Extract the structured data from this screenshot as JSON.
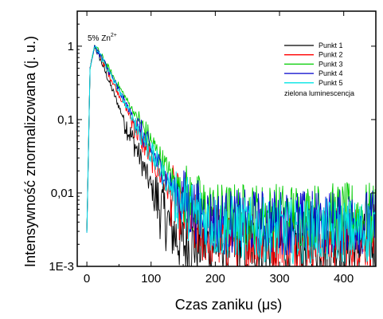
{
  "chart_data": {
    "type": "line",
    "xlabel": "Czas zaniku (μs)",
    "ylabel": "Intensywność znormalizowana (j. u.)",
    "xlim": [
      -15,
      450
    ],
    "ylim": [
      0.001,
      3
    ],
    "y_scale": "log",
    "x_ticks": [
      0,
      100,
      200,
      300,
      400
    ],
    "x_tick_labels": [
      "0",
      "100",
      "200",
      "300",
      "400"
    ],
    "y_ticks": [
      0.001,
      0.01,
      0.1,
      1
    ],
    "y_tick_labels": [
      "1E-3",
      "0,01",
      "0,1",
      "1"
    ],
    "grid": false,
    "legend_position": "top-right",
    "annotation": {
      "base": "5% Zn",
      "sup": "2+"
    },
    "legend_note": "zielona luminescencja",
    "series": [
      {
        "name": "Punkt 1",
        "color": "#000000",
        "x": [
          0,
          5,
          12,
          20,
          40,
          60,
          80,
          100,
          120,
          140,
          150,
          200,
          300,
          450
        ],
        "y": [
          0.003,
          0.5,
          1,
          0.7,
          0.25,
          0.09,
          0.035,
          0.012,
          0.005,
          0.0025,
          0.002,
          0.002,
          0.002,
          0.002
        ]
      },
      {
        "name": "Punkt 2",
        "color": "#ff0000",
        "x": [
          0,
          5,
          12,
          20,
          40,
          60,
          80,
          100,
          120,
          140,
          160,
          180,
          200,
          300,
          450
        ],
        "y": [
          0.003,
          0.5,
          1,
          0.75,
          0.33,
          0.15,
          0.065,
          0.03,
          0.014,
          0.007,
          0.004,
          0.003,
          0.0025,
          0.0025,
          0.0025
        ]
      },
      {
        "name": "Punkt 3",
        "color": "#00cc00",
        "x": [
          0,
          5,
          12,
          20,
          40,
          60,
          80,
          100,
          120,
          140,
          160,
          180,
          200,
          220,
          300,
          450
        ],
        "y": [
          0.003,
          0.5,
          1,
          0.8,
          0.4,
          0.2,
          0.1,
          0.05,
          0.025,
          0.013,
          0.008,
          0.006,
          0.005,
          0.005,
          0.005,
          0.005
        ]
      },
      {
        "name": "Punkt 4",
        "color": "#0000cc",
        "x": [
          0,
          5,
          12,
          20,
          40,
          60,
          80,
          100,
          120,
          140,
          160,
          180,
          200,
          300,
          450
        ],
        "y": [
          0.003,
          0.5,
          1,
          0.78,
          0.37,
          0.17,
          0.08,
          0.038,
          0.018,
          0.01,
          0.0065,
          0.005,
          0.004,
          0.004,
          0.004
        ]
      },
      {
        "name": "Punkt 5",
        "color": "#00e5e5",
        "x": [
          0,
          5,
          12,
          20,
          40,
          60,
          80,
          100,
          120,
          140,
          160,
          180,
          200,
          300,
          450
        ],
        "y": [
          0.003,
          0.5,
          1,
          0.78,
          0.36,
          0.16,
          0.075,
          0.035,
          0.017,
          0.009,
          0.006,
          0.0045,
          0.0035,
          0.003,
          0.003
        ]
      }
    ]
  }
}
